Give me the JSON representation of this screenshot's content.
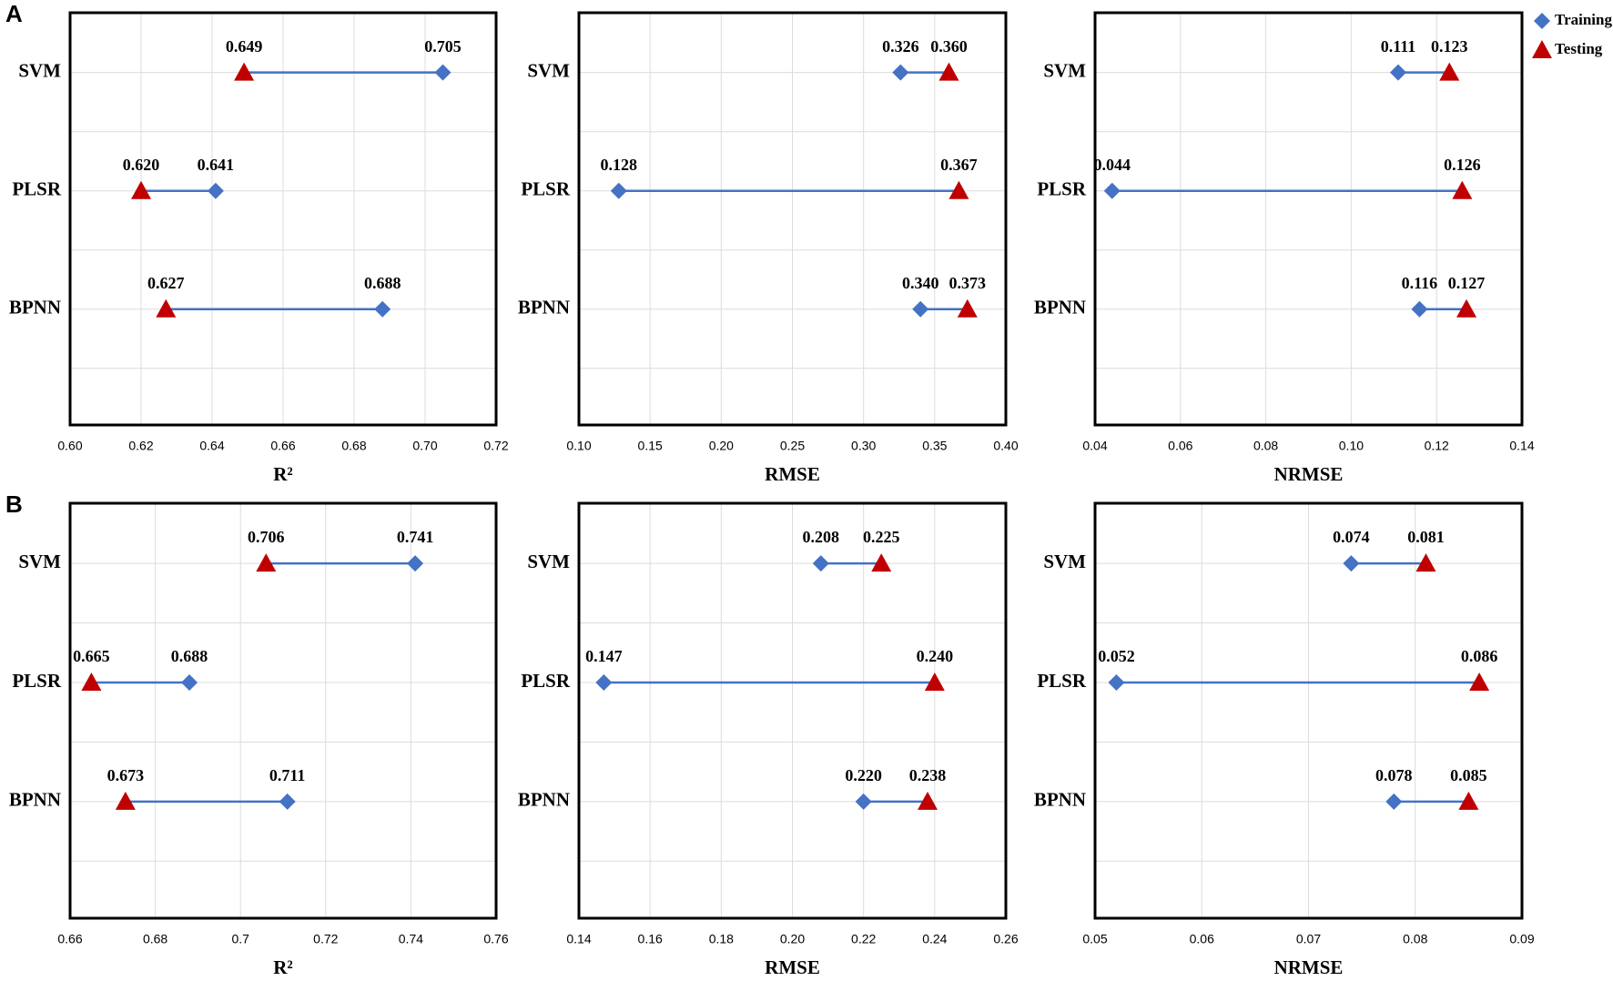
{
  "legend_corner": "top-right",
  "chart_data": [
    {
      "type": "dumbbell",
      "panel": "A",
      "xlabel": "R²",
      "categories": [
        "SVM",
        "PLSR",
        "BPNN"
      ],
      "xlim": [
        0.6,
        0.72
      ],
      "xticks": [
        {
          "value": 0.6,
          "label": "0.60"
        },
        0.62,
        0.64,
        0.66,
        0.68,
        {
          "value": 0.7,
          "label": "0.70"
        },
        0.72
      ],
      "grid": true,
      "series": [
        {
          "color": "#4472c4",
          "marker": "diamond",
          "values": [
            0.705,
            0.641,
            0.688
          ],
          "value_labels": [
            "0.705",
            "0.641",
            "0.688"
          ]
        },
        {
          "color": "#c00000",
          "marker": "triangle",
          "values": [
            0.649,
            0.62,
            0.627
          ],
          "value_labels": [
            "0.649",
            "0.620",
            "0.627"
          ]
        }
      ]
    },
    {
      "type": "dumbbell",
      "xlabel": "RMSE",
      "categories": [
        "SVM",
        "PLSR",
        "BPNN"
      ],
      "xlim": [
        0.1,
        0.4
      ],
      "xticks": [
        {
          "value": 0.1,
          "label": "0.10"
        },
        0.15,
        {
          "value": 0.2,
          "label": "0.20"
        },
        0.25,
        {
          "value": 0.3,
          "label": "0.30"
        },
        0.35,
        {
          "value": 0.4,
          "label": "0.40"
        }
      ],
      "grid": true,
      "series": [
        {
          "color": "#4472c4",
          "marker": "diamond",
          "values": [
            0.326,
            0.128,
            0.34
          ],
          "value_labels": [
            "0.326",
            "0.128",
            "0.340"
          ]
        },
        {
          "color": "#c00000",
          "marker": "triangle",
          "values": [
            0.36,
            0.367,
            0.373
          ],
          "value_labels": [
            "0.360",
            "0.367",
            "0.373"
          ]
        }
      ]
    },
    {
      "type": "dumbbell",
      "xlabel": "NRMSE",
      "categories": [
        "SVM",
        "PLSR",
        "BPNN"
      ],
      "xlim": [
        0.04,
        0.14
      ],
      "xticks": [
        0.04,
        0.06,
        0.08,
        {
          "value": 0.1,
          "label": "0.10"
        },
        0.12,
        0.14
      ],
      "grid": true,
      "series": [
        {
          "name": "Training",
          "color": "#4472c4",
          "marker": "diamond",
          "values": [
            0.111,
            0.044,
            0.116
          ],
          "value_labels": [
            "0.111",
            "0.044",
            "0.116"
          ]
        },
        {
          "name": "Testing",
          "color": "#c00000",
          "marker": "triangle",
          "values": [
            0.123,
            0.126,
            0.127
          ],
          "value_labels": [
            "0.123",
            "0.126",
            "0.127"
          ]
        }
      ]
    },
    {
      "type": "dumbbell",
      "panel": "B",
      "xlabel": "R²",
      "categories": [
        "SVM",
        "PLSR",
        "BPNN"
      ],
      "xlim": [
        0.66,
        0.76
      ],
      "xticks": [
        0.66,
        0.68,
        0.7,
        0.72,
        0.74,
        0.76
      ],
      "grid": true,
      "series": [
        {
          "color": "#4472c4",
          "marker": "diamond",
          "values": [
            0.741,
            0.688,
            0.711
          ],
          "value_labels": [
            "0.741",
            "0.688",
            "0.711"
          ]
        },
        {
          "color": "#c00000",
          "marker": "triangle",
          "values": [
            0.706,
            0.665,
            0.673
          ],
          "value_labels": [
            "0.706",
            "0.665",
            "0.673"
          ]
        }
      ]
    },
    {
      "type": "dumbbell",
      "xlabel": "RMSE",
      "categories": [
        "SVM",
        "PLSR",
        "BPNN"
      ],
      "xlim": [
        0.14,
        0.26
      ],
      "xticks": [
        0.14,
        0.16,
        0.18,
        {
          "value": 0.2,
          "label": "0.20"
        },
        0.22,
        0.24,
        0.26
      ],
      "grid": true,
      "series": [
        {
          "color": "#4472c4",
          "marker": "diamond",
          "values": [
            0.208,
            0.147,
            0.22
          ],
          "value_labels": [
            "0.208",
            "0.147",
            "0.220"
          ]
        },
        {
          "color": "#c00000",
          "marker": "triangle",
          "values": [
            0.225,
            0.24,
            0.238
          ],
          "value_labels": [
            "0.225",
            "0.240",
            "0.238"
          ]
        }
      ]
    },
    {
      "type": "dumbbell",
      "xlabel": "NRMSE",
      "categories": [
        "SVM",
        "PLSR",
        "BPNN"
      ],
      "xlim": [
        0.05,
        0.09
      ],
      "xticks": [
        0.05,
        0.06,
        0.07,
        0.08,
        0.09
      ],
      "grid": true,
      "series": [
        {
          "color": "#4472c4",
          "marker": "diamond",
          "values": [
            0.074,
            0.052,
            0.078
          ],
          "value_labels": [
            "0.074",
            "0.052",
            "0.078"
          ]
        },
        {
          "color": "#c00000",
          "marker": "triangle",
          "values": [
            0.081,
            0.086,
            0.085
          ],
          "value_labels": [
            "0.081",
            "0.086",
            "0.085"
          ]
        }
      ]
    }
  ]
}
